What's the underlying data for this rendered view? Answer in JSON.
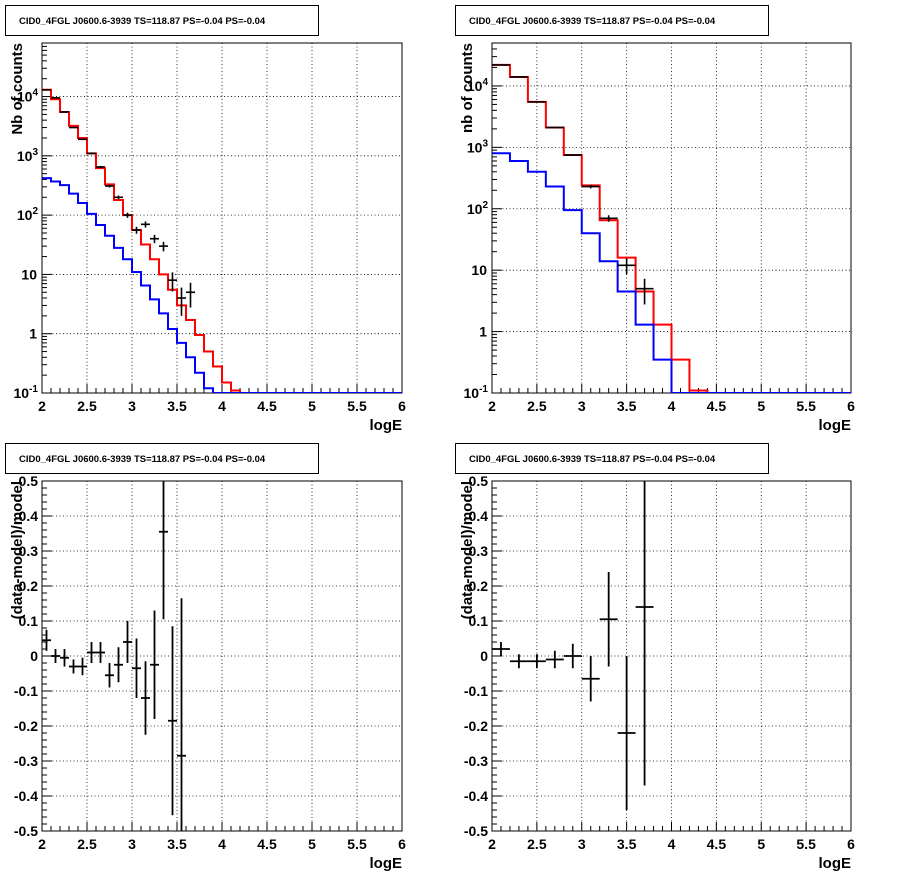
{
  "colors": {
    "data": "#000000",
    "model_total": "#ff0000",
    "model_component": "#0000ff",
    "grid": "#000000"
  },
  "chart_data": [
    {
      "type": "line",
      "title": "CID0_4FGL J0600.6-3939 TS=118.87 PS=-0.04 PS=-0.04",
      "xlabel": "logE",
      "ylabel": "Nb of counts",
      "xlim": [
        2,
        6
      ],
      "ylim": [
        0.1,
        80000
      ],
      "yscale": "log",
      "grid": true,
      "x_ticks": [
        "2",
        "2.5",
        "3",
        "3.5",
        "4",
        "4.5",
        "5",
        "5.5",
        "6"
      ],
      "y_ticks": [
        "10^-1",
        "1",
        "10",
        "10^2",
        "10^3",
        "10^4"
      ],
      "bin_width": 0.1,
      "bin_starts": [
        2.0,
        2.1,
        2.2,
        2.3,
        2.4,
        2.5,
        2.6,
        2.7,
        2.8,
        2.9,
        3.0,
        3.1,
        3.2,
        3.3,
        3.4,
        3.5,
        3.6,
        3.7,
        3.8,
        3.9,
        4.0,
        4.1,
        4.2
      ],
      "series": [
        {
          "role": "model_total",
          "values": [
            13000,
            9000,
            5500,
            3200,
            2000,
            1100,
            620,
            330,
            180,
            100,
            56,
            32,
            18,
            10,
            5.5,
            3,
            1.7,
            0.95,
            0.5,
            0.28,
            0.15,
            0.11,
            0.1
          ]
        },
        {
          "role": "model_component",
          "values": [
            420,
            370,
            320,
            230,
            160,
            105,
            68,
            45,
            28,
            18,
            11,
            6.5,
            3.8,
            2.2,
            1.2,
            0.7,
            0.4,
            0.22,
            0.12,
            0.1,
            0.1,
            0.1,
            0.1
          ]
        },
        {
          "role": "data",
          "points": [
            [
              2.05,
              13000
            ],
            [
              2.15,
              9500
            ],
            [
              2.25,
              5500
            ],
            [
              2.35,
              3000
            ],
            [
              2.45,
              1900
            ],
            [
              2.55,
              1100
            ],
            [
              2.65,
              650
            ],
            [
              2.75,
              310
            ],
            [
              2.85,
              200
            ],
            [
              2.95,
              100
            ],
            [
              3.05,
              56
            ],
            [
              3.15,
              70
            ],
            [
              3.25,
              40
            ],
            [
              3.35,
              30
            ],
            [
              3.45,
              8
            ],
            [
              3.55,
              4
            ],
            [
              3.65,
              5
            ]
          ]
        }
      ]
    },
    {
      "type": "line",
      "title": "CID0_4FGL J0600.6-3939 TS=118.87 PS=-0.04 PS=-0.04",
      "xlabel": "logE",
      "ylabel": "nb of counts",
      "xlim": [
        2,
        6
      ],
      "ylim": [
        0.1,
        50000
      ],
      "yscale": "log",
      "grid": true,
      "x_ticks": [
        "2",
        "2.5",
        "3",
        "3.5",
        "4",
        "4.5",
        "5",
        "5.5",
        "6"
      ],
      "y_ticks": [
        "10^-1",
        "1",
        "10",
        "10^2",
        "10^3",
        "10^4"
      ],
      "bin_width": 0.2,
      "bin_starts": [
        2.0,
        2.2,
        2.4,
        2.6,
        2.8,
        3.0,
        3.2,
        3.4,
        3.6,
        3.8,
        4.0,
        4.2,
        4.4
      ],
      "series": [
        {
          "role": "model_total",
          "values": [
            22000,
            14000,
            5500,
            2100,
            750,
            240,
            65,
            16,
            4.5,
            1.3,
            0.35,
            0.11,
            0.1
          ]
        },
        {
          "role": "model_component",
          "values": [
            800,
            600,
            400,
            230,
            95,
            40,
            14,
            4.5,
            1.3,
            0.35,
            0.1,
            0.1,
            0.1
          ]
        },
        {
          "role": "data",
          "points": [
            [
              2.1,
              22000
            ],
            [
              2.3,
              14000
            ],
            [
              2.5,
              5500
            ],
            [
              2.7,
              2100
            ],
            [
              2.9,
              750
            ],
            [
              3.1,
              230
            ],
            [
              3.3,
              70
            ],
            [
              3.5,
              12
            ],
            [
              3.7,
              5
            ]
          ]
        }
      ]
    },
    {
      "type": "scatter",
      "title": "CID0_4FGL J0600.6-3939 TS=118.87 PS=-0.04 PS=-0.04",
      "xlabel": "logE",
      "ylabel": "(data-model)/model",
      "xlim": [
        2,
        6
      ],
      "ylim": [
        -0.5,
        0.5
      ],
      "grid": true,
      "x_ticks": [
        "2",
        "2.5",
        "3",
        "3.5",
        "4",
        "4.5",
        "5",
        "5.5",
        "6"
      ],
      "y_ticks": [
        "-0.5",
        "-0.4",
        "-0.3",
        "-0.2",
        "-0.1",
        "0",
        "0.1",
        "0.2",
        "0.3",
        "0.4",
        "0.5"
      ],
      "x_half_width": 0.05,
      "points": [
        {
          "x": 2.05,
          "y": 0.045,
          "err": 0.03
        },
        {
          "x": 2.15,
          "y": 0.0,
          "err": 0.02
        },
        {
          "x": 2.25,
          "y": -0.005,
          "err": 0.025
        },
        {
          "x": 2.35,
          "y": -0.03,
          "err": 0.02
        },
        {
          "x": 2.45,
          "y": -0.03,
          "err": 0.025
        },
        {
          "x": 2.55,
          "y": 0.01,
          "err": 0.03
        },
        {
          "x": 2.65,
          "y": 0.01,
          "err": 0.03
        },
        {
          "x": 2.75,
          "y": -0.055,
          "err": 0.035
        },
        {
          "x": 2.85,
          "y": -0.025,
          "err": 0.05
        },
        {
          "x": 2.95,
          "y": 0.04,
          "err": 0.06
        },
        {
          "x": 3.05,
          "y": -0.035,
          "err": 0.085
        },
        {
          "x": 3.15,
          "y": -0.12,
          "err": 0.105
        },
        {
          "x": 3.25,
          "y": -0.025,
          "err": 0.155
        },
        {
          "x": 3.35,
          "y": 0.355,
          "err": 0.25
        },
        {
          "x": 3.45,
          "y": -0.185,
          "err": 0.27
        },
        {
          "x": 3.55,
          "y": -0.285,
          "err": 0.45
        }
      ]
    },
    {
      "type": "scatter",
      "title": "CID0_4FGL J0600.6-3939 TS=118.87 PS=-0.04 PS=-0.04",
      "xlabel": "logE",
      "ylabel": "(data-model)/model",
      "xlim": [
        2,
        6
      ],
      "ylim": [
        -0.5,
        0.5
      ],
      "grid": true,
      "x_ticks": [
        "2",
        "2.5",
        "3",
        "3.5",
        "4",
        "4.5",
        "5",
        "5.5",
        "6"
      ],
      "y_ticks": [
        "-0.5",
        "-0.4",
        "-0.3",
        "-0.2",
        "-0.1",
        "0",
        "0.1",
        "0.2",
        "0.3",
        "0.4",
        "0.5"
      ],
      "x_half_width": 0.1,
      "points": [
        {
          "x": 2.1,
          "y": 0.02,
          "err": 0.02
        },
        {
          "x": 2.3,
          "y": -0.015,
          "err": 0.02
        },
        {
          "x": 2.5,
          "y": -0.015,
          "err": 0.02
        },
        {
          "x": 2.7,
          "y": -0.01,
          "err": 0.025
        },
        {
          "x": 2.9,
          "y": 0.0,
          "err": 0.035
        },
        {
          "x": 3.1,
          "y": -0.065,
          "err": 0.065
        },
        {
          "x": 3.3,
          "y": 0.105,
          "err": 0.135
        },
        {
          "x": 3.5,
          "y": -0.22,
          "err": 0.22
        },
        {
          "x": 3.7,
          "y": 0.14,
          "err": 0.51
        }
      ]
    }
  ]
}
